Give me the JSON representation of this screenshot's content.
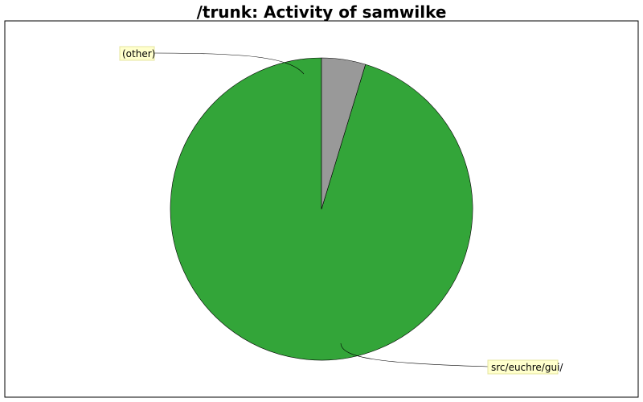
{
  "chart_data": {
    "type": "pie",
    "title": "/trunk: Activity of samwilke",
    "slices": [
      {
        "label": "src/euchre/gui/",
        "value": 95.3,
        "color": "#33a539"
      },
      {
        "label": "(other)",
        "value": 4.7,
        "color": "#999999"
      }
    ],
    "start_angle": "12 o'clock",
    "direction": "counter-clockwise",
    "legend": "none",
    "label_background": "#ffffcc"
  }
}
